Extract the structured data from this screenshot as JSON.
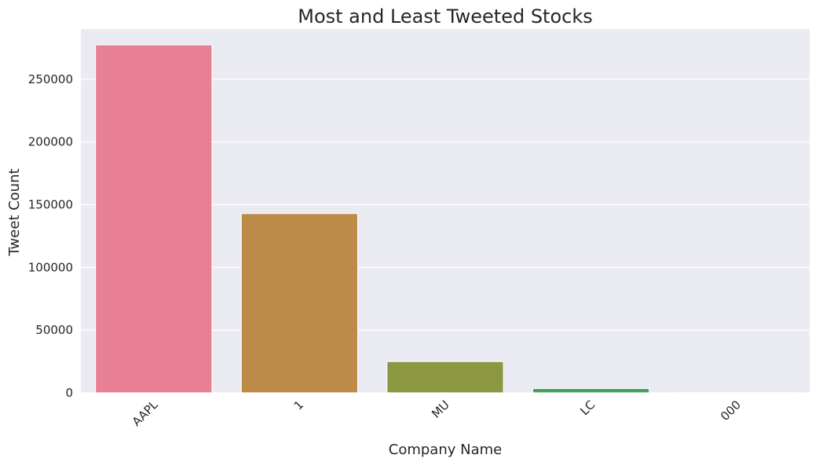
{
  "chart_data": {
    "type": "bar",
    "title": "Most and Least Tweeted Stocks",
    "xlabel": "Company Name",
    "ylabel": "Tweet Count",
    "categories": [
      "AAPL",
      "1",
      "MU",
      "LC",
      "000"
    ],
    "values": [
      277500,
      143000,
      25000,
      3500,
      150
    ],
    "colors": [
      "#e88094",
      "#bc8b47",
      "#8b9741",
      "#45a15c",
      "#4ea3a8"
    ],
    "ylim": [
      0,
      290000
    ],
    "yticks": [
      0,
      50000,
      100000,
      150000,
      200000,
      250000
    ],
    "ytick_labels": [
      "0",
      "50000",
      "100000",
      "150000",
      "200000",
      "250000"
    ],
    "grid": true,
    "background": "#eaeaf2",
    "gridline_color": "#ffffff",
    "xtick_rotation": 45
  }
}
